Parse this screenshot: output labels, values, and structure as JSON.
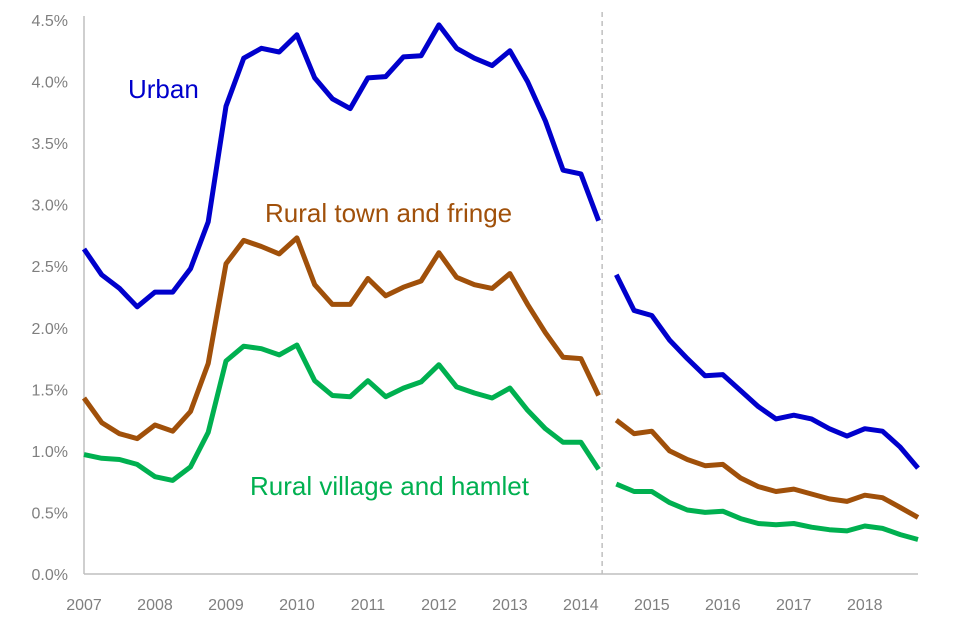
{
  "chart_data": {
    "type": "line",
    "title": "",
    "xlabel": "",
    "ylabel": "",
    "ylim": [
      0,
      4.5
    ],
    "yticks": [
      0,
      0.5,
      1.0,
      1.5,
      2.0,
      2.5,
      3.0,
      3.5,
      4.0,
      4.5
    ],
    "ytick_labels": [
      "0.0%",
      "0.5%",
      "1.0%",
      "1.5%",
      "2.0%",
      "2.5%",
      "3.0%",
      "3.5%",
      "4.0%",
      "4.5%"
    ],
    "xlim": [
      2007,
      2018.75
    ],
    "xticks": [
      2007,
      2008,
      2009,
      2010,
      2011,
      2012,
      2013,
      2014,
      2015,
      2016,
      2017,
      2018
    ],
    "xtick_labels": [
      "2007",
      "2008",
      "2009",
      "2010",
      "2011",
      "2012",
      "2013",
      "2014",
      "2015",
      "2016",
      "2017",
      "2018"
    ],
    "grid": false,
    "series_break_at": 2014.3,
    "x_segment1": [
      2007.0,
      2007.25,
      2007.5,
      2007.75,
      2008.0,
      2008.25,
      2008.5,
      2008.75,
      2009.0,
      2009.25,
      2009.5,
      2009.75,
      2010.0,
      2010.25,
      2010.5,
      2010.75,
      2011.0,
      2011.25,
      2011.5,
      2011.75,
      2012.0,
      2012.25,
      2012.5,
      2012.75,
      2013.0,
      2013.25,
      2013.5,
      2013.75,
      2014.0,
      2014.25
    ],
    "x_segment2": [
      2014.5,
      2014.75,
      2015.0,
      2015.25,
      2015.5,
      2015.75,
      2016.0,
      2016.25,
      2016.5,
      2016.75,
      2017.0,
      2017.25,
      2017.5,
      2017.75,
      2018.0,
      2018.25,
      2018.5,
      2018.75
    ],
    "series": [
      {
        "name": "Urban",
        "color": "#0000cc",
        "segment1": [
          2.64,
          2.43,
          2.32,
          2.17,
          2.29,
          2.29,
          2.48,
          2.86,
          3.8,
          4.19,
          4.27,
          4.24,
          4.38,
          4.03,
          3.86,
          3.78,
          4.03,
          4.04,
          4.2,
          4.21,
          4.46,
          4.27,
          4.19,
          4.13,
          4.25,
          4.0,
          3.68,
          3.28,
          3.25,
          2.87
        ],
        "segment2": [
          2.43,
          2.14,
          2.1,
          1.9,
          1.75,
          1.61,
          1.62,
          1.49,
          1.36,
          1.26,
          1.29,
          1.26,
          1.18,
          1.12,
          1.18,
          1.16,
          1.03,
          0.86
        ]
      },
      {
        "name": "Rural town and fringe",
        "color": "#a0500a",
        "segment1": [
          1.43,
          1.23,
          1.14,
          1.1,
          1.21,
          1.16,
          1.32,
          1.71,
          2.52,
          2.71,
          2.66,
          2.6,
          2.73,
          2.35,
          2.19,
          2.19,
          2.4,
          2.26,
          2.33,
          2.38,
          2.61,
          2.41,
          2.35,
          2.32,
          2.44,
          2.19,
          1.96,
          1.76,
          1.75,
          1.45
        ],
        "segment2": [
          1.25,
          1.14,
          1.16,
          1.0,
          0.93,
          0.88,
          0.89,
          0.78,
          0.71,
          0.67,
          0.69,
          0.65,
          0.61,
          0.59,
          0.64,
          0.62,
          0.54,
          0.46
        ]
      },
      {
        "name": "Rural village and hamlet",
        "color": "#00b050",
        "segment1": [
          0.97,
          0.94,
          0.93,
          0.89,
          0.79,
          0.76,
          0.87,
          1.15,
          1.73,
          1.85,
          1.83,
          1.78,
          1.86,
          1.57,
          1.45,
          1.44,
          1.57,
          1.44,
          1.51,
          1.56,
          1.7,
          1.52,
          1.47,
          1.43,
          1.51,
          1.33,
          1.18,
          1.07,
          1.07,
          0.85
        ],
        "segment2": [
          0.73,
          0.67,
          0.67,
          0.58,
          0.52,
          0.5,
          0.51,
          0.45,
          0.41,
          0.4,
          0.41,
          0.38,
          0.36,
          0.35,
          0.39,
          0.37,
          0.32,
          0.28
        ]
      }
    ],
    "annotations": [
      {
        "series": 0,
        "text": "Urban"
      },
      {
        "series": 1,
        "text": "Rural town and fringe"
      },
      {
        "series": 2,
        "text": "Rural village and hamlet"
      }
    ],
    "axis_color": "#bfbfbf",
    "tick_label_color": "#7f7f7f",
    "break_line_color": "#bfbfbf"
  }
}
